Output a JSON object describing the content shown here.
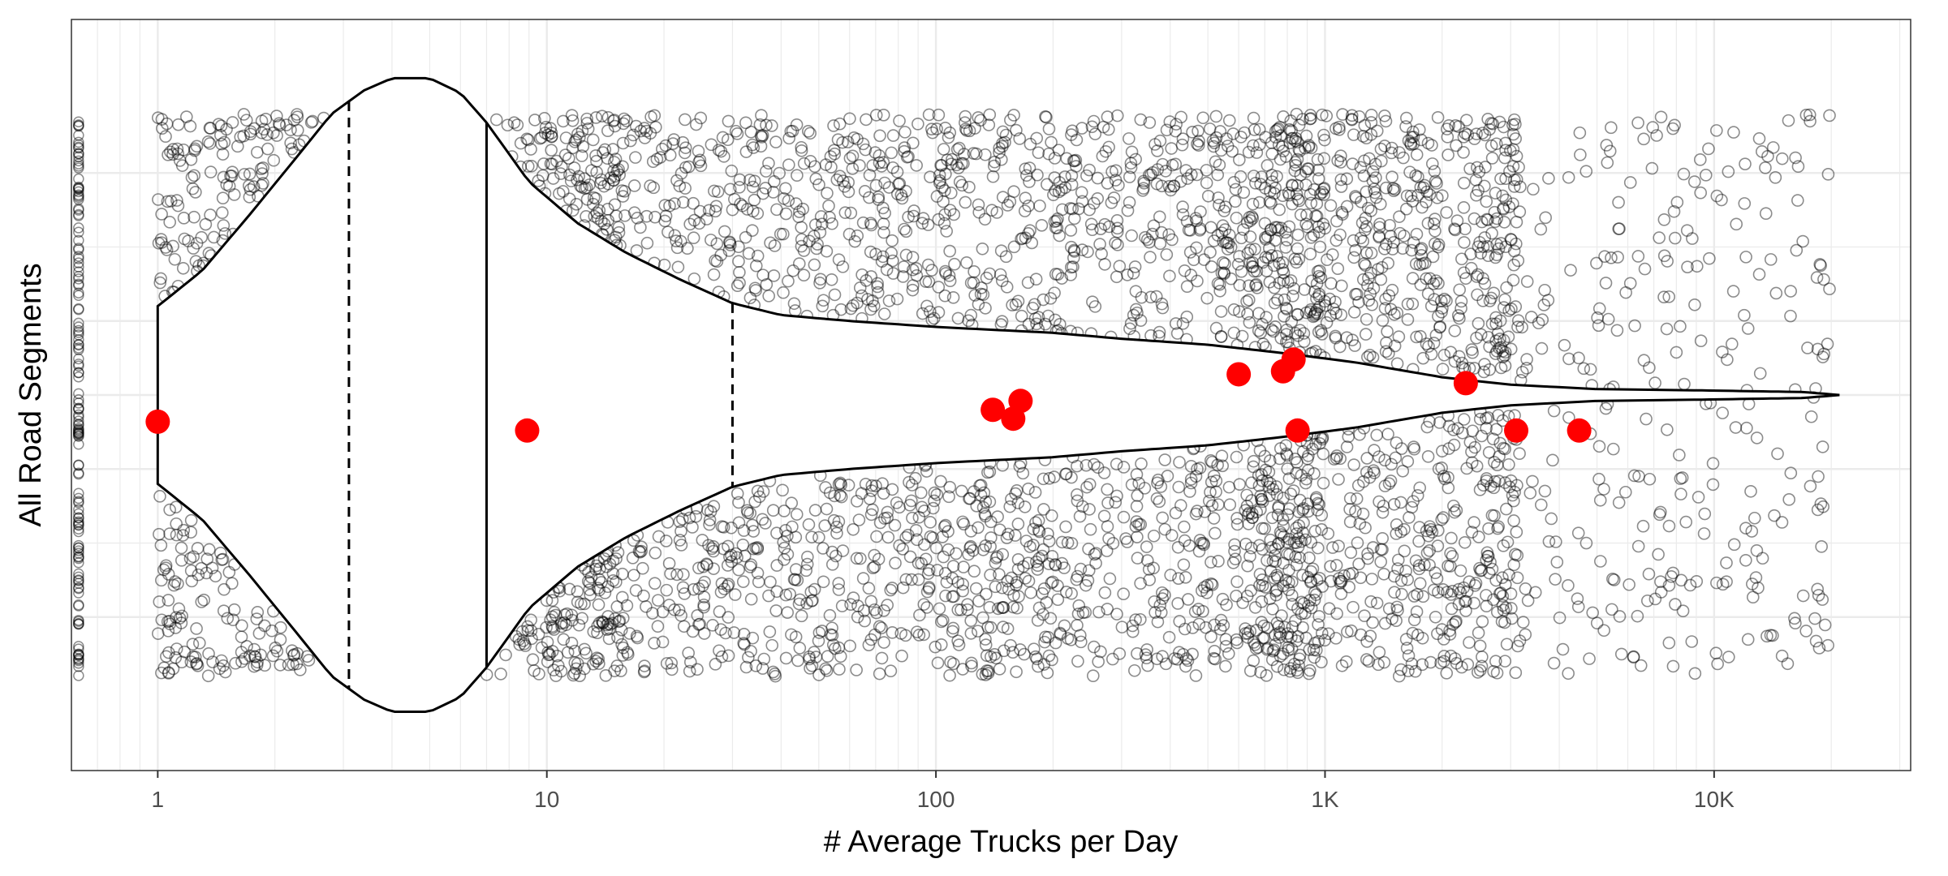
{
  "chart_data": {
    "type": "violin",
    "xlabel": "# Average Trucks per Day",
    "ylabel": "All Road Segments",
    "x_scale": "log10",
    "xlim": [
      0.6,
      32000
    ],
    "x_ticks": [
      {
        "value": 1,
        "label": "1"
      },
      {
        "value": 10,
        "label": "10"
      },
      {
        "value": 100,
        "label": "100"
      },
      {
        "value": 1000,
        "label": "1K"
      },
      {
        "value": 10000,
        "label": "10K"
      }
    ],
    "grid": true,
    "legend": "none",
    "colors": {
      "points": "#000000",
      "highlight": "#ff0000",
      "violin_fill": "#ffffff",
      "violin_outline": "#000000",
      "grid": "#ebebeb",
      "panel_border": "#333333"
    },
    "quantile_lines": [
      {
        "value": 3.1,
        "style": "dashed"
      },
      {
        "value": 7.0,
        "style": "solid"
      },
      {
        "value": 30,
        "style": "dashed"
      }
    ],
    "violin_half_width": [
      [
        1.0,
        0.3
      ],
      [
        1.3,
        0.42
      ],
      [
        1.7,
        0.6
      ],
      [
        2.2,
        0.78
      ],
      [
        2.8,
        0.95
      ],
      [
        3.4,
        1.03
      ],
      [
        4.0,
        1.07
      ],
      [
        5.0,
        1.07
      ],
      [
        6.0,
        1.02
      ],
      [
        7.0,
        0.92
      ],
      [
        9.0,
        0.72
      ],
      [
        12,
        0.58
      ],
      [
        16,
        0.48
      ],
      [
        22,
        0.39
      ],
      [
        30,
        0.31
      ],
      [
        40,
        0.27
      ],
      [
        60,
        0.25
      ],
      [
        100,
        0.23
      ],
      [
        200,
        0.21
      ],
      [
        300,
        0.19
      ],
      [
        500,
        0.17
      ],
      [
        800,
        0.14
      ],
      [
        1200,
        0.11
      ],
      [
        2000,
        0.06
      ],
      [
        3000,
        0.035
      ],
      [
        5000,
        0.02
      ],
      [
        10000,
        0.015
      ],
      [
        17000,
        0.01
      ],
      [
        21000,
        0.0
      ]
    ],
    "highlighted_points": [
      {
        "x": 1.0,
        "y": -0.09
      },
      {
        "x": 8.9,
        "y": -0.12
      },
      {
        "x": 140,
        "y": -0.05
      },
      {
        "x": 158,
        "y": -0.08
      },
      {
        "x": 165,
        "y": -0.02
      },
      {
        "x": 600,
        "y": 0.07
      },
      {
        "x": 780,
        "y": 0.08
      },
      {
        "x": 830,
        "y": 0.12
      },
      {
        "x": 850,
        "y": -0.12
      },
      {
        "x": 2300,
        "y": 0.04
      },
      {
        "x": 3100,
        "y": -0.12
      },
      {
        "x": 4500,
        "y": -0.12
      }
    ],
    "jitter_points": {
      "description": "many thousands of individual road segments, open circles, semi-transparent",
      "y_range": [
        -0.95,
        0.95
      ],
      "sample_count": 3600
    }
  }
}
